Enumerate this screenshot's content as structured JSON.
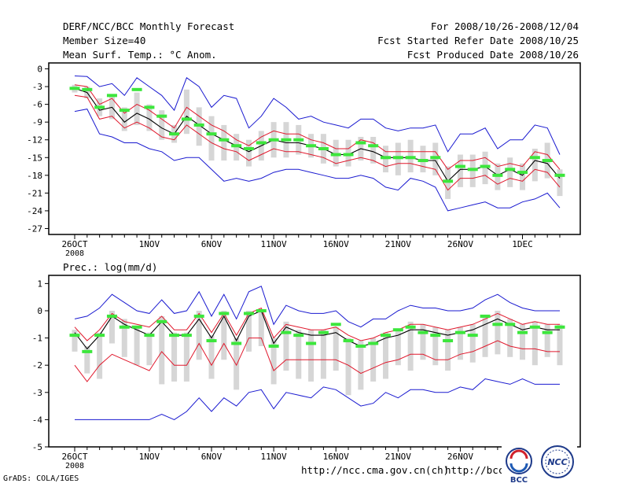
{
  "header": {
    "title": "DERF/NCC/BCC Monthly Forecast",
    "member": "Member Size=40",
    "variable": "Mean Surf. Temp.: °C Anom.",
    "period": "For 2008/10/26-2008/12/04",
    "started": "Fcst Started Refer Date 2008/10/25",
    "produced": "Fcst Produced Date 2008/10/26"
  },
  "footer": {
    "credit": "GrADS: COLA/IGES",
    "url1": "http://ncc.cma.gov.cn(ch)",
    "url2": "http://bcc.c",
    "logo1_text": "BCC",
    "logo2_text": "NCC"
  },
  "colors": {
    "mean": "#000000",
    "spread": "#e0182c",
    "envelope": "#1a1ad0",
    "box": "#d6d6d6",
    "median": "#3ce63c"
  },
  "chart_data": [
    {
      "type": "line",
      "name": "temperature",
      "title": "Mean Surf. Temp.: °C Anom.",
      "xlabel": "",
      "ylabel": "",
      "x": [
        1,
        2,
        3,
        4,
        5,
        6,
        7,
        8,
        9,
        10,
        11,
        12,
        13,
        14,
        15,
        16,
        17,
        18,
        19,
        20,
        21,
        22,
        23,
        24,
        25,
        26,
        27,
        28,
        29,
        30,
        31,
        32,
        33,
        34,
        35,
        36,
        37,
        38,
        39,
        40
      ],
      "xticks": [
        {
          "day": 1,
          "label": "26OCT",
          "sub": "2008"
        },
        {
          "day": 7,
          "label": "1NOV"
        },
        {
          "day": 12,
          "label": "6NOV"
        },
        {
          "day": 17,
          "label": "11NOV"
        },
        {
          "day": 22,
          "label": "16NOV"
        },
        {
          "day": 27,
          "label": "21NOV"
        },
        {
          "day": 32,
          "label": "26NOV"
        },
        {
          "day": 37,
          "label": "1DEC"
        }
      ],
      "ylim": [
        -28,
        1
      ],
      "yticks": [
        0,
        -3,
        -6,
        -9,
        -12,
        -15,
        -18,
        -21,
        -24,
        -27
      ],
      "series": [
        {
          "name": "mean",
          "color": "#000000",
          "values": [
            -3.3,
            -4.0,
            -7.0,
            -6.5,
            -9.0,
            -7.5,
            -8.5,
            -10.0,
            -11.0,
            -8.0,
            -9.5,
            -11.0,
            -12.0,
            -13.0,
            -14.0,
            -13.0,
            -12.0,
            -12.5,
            -12.5,
            -13.0,
            -13.5,
            -14.5,
            -14.5,
            -13.5,
            -14.0,
            -15.0,
            -15.0,
            -15.0,
            -15.5,
            -15.5,
            -19.0,
            -17.0,
            -17.0,
            -16.5,
            -18.0,
            -17.0,
            -18.0,
            -15.5,
            -16.0,
            -18.5
          ]
        },
        {
          "name": "upper",
          "color": "#e0182c",
          "values": [
            -2.7,
            -3.0,
            -6.0,
            -5.0,
            -7.5,
            -6.0,
            -7.0,
            -8.5,
            -10.0,
            -6.5,
            -8.0,
            -9.5,
            -10.5,
            -12.0,
            -13.0,
            -11.5,
            -10.5,
            -11.0,
            -11.0,
            -12.0,
            -12.5,
            -13.5,
            -13.5,
            -12.0,
            -12.5,
            -14.0,
            -14.0,
            -14.0,
            -14.0,
            -14.0,
            -17.0,
            -15.5,
            -15.5,
            -15.0,
            -16.5,
            -16.0,
            -16.5,
            -14.0,
            -14.5,
            -17.0
          ]
        },
        {
          "name": "lower",
          "color": "#e0182c",
          "values": [
            -4.5,
            -4.8,
            -8.5,
            -8.0,
            -10.0,
            -9.0,
            -10.0,
            -11.5,
            -12.0,
            -9.5,
            -11.0,
            -12.5,
            -13.5,
            -14.0,
            -15.5,
            -14.5,
            -13.5,
            -14.0,
            -14.0,
            -14.5,
            -15.0,
            -16.0,
            -15.5,
            -15.0,
            -15.5,
            -16.5,
            -16.0,
            -16.0,
            -16.5,
            -17.0,
            -20.5,
            -18.5,
            -18.5,
            -18.0,
            -19.5,
            -18.5,
            -19.0,
            -17.0,
            -17.5,
            -20.0
          ]
        },
        {
          "name": "max",
          "color": "#1a1ad0",
          "values": [
            -1.2,
            -1.3,
            -3.0,
            -2.5,
            -4.5,
            -1.5,
            -3.0,
            -4.5,
            -7.0,
            -1.5,
            -3.0,
            -6.5,
            -4.5,
            -5.0,
            -10.0,
            -8.0,
            -5.0,
            -6.5,
            -8.5,
            -8.0,
            -9.0,
            -9.5,
            -10.0,
            -8.5,
            -8.5,
            -10.0,
            -10.5,
            -10.0,
            -10.0,
            -9.5,
            -14.0,
            -11.0,
            -11.0,
            -10.0,
            -13.5,
            -12.0,
            -12.0,
            -9.5,
            -10.0,
            -14.5
          ]
        },
        {
          "name": "min",
          "color": "#1a1ad0",
          "values": [
            -7.2,
            -6.8,
            -11.0,
            -11.5,
            -12.5,
            -12.5,
            -13.5,
            -14.0,
            -15.5,
            -15.0,
            -15.0,
            -17.0,
            -19.0,
            -18.5,
            -19.0,
            -18.5,
            -17.5,
            -17.0,
            -17.0,
            -17.5,
            -18.0,
            -18.5,
            -18.5,
            -18.0,
            -18.5,
            -20.0,
            -20.5,
            -18.5,
            -19.0,
            -20.0,
            -24.0,
            -23.5,
            -23.0,
            -22.5,
            -23.5,
            -23.5,
            -22.5,
            -22.0,
            -21.0,
            -23.5
          ]
        }
      ],
      "box_top": [
        -2.7,
        -3.0,
        -5.0,
        -4.5,
        -6.5,
        -4.0,
        -6.0,
        -7.0,
        -9.5,
        -3.5,
        -6.5,
        -8.0,
        -9.5,
        -11.0,
        -12.0,
        -10.5,
        -9.0,
        -9.0,
        -9.5,
        -11.0,
        -11.0,
        -12.0,
        -12.0,
        -11.5,
        -11.5,
        -13.0,
        -12.5,
        -12.0,
        -13.0,
        -12.5,
        -16.5,
        -14.5,
        -14.5,
        -14.0,
        -16.0,
        -15.0,
        -16.0,
        -13.5,
        -12.5,
        -17.0
      ],
      "box_bottom": [
        -4.0,
        -5.0,
        -8.0,
        -8.5,
        -10.5,
        -9.5,
        -10.5,
        -12.0,
        -12.5,
        -11.0,
        -13.0,
        -15.5,
        -15.5,
        -15.5,
        -16.5,
        -15.5,
        -15.0,
        -15.0,
        -14.5,
        -15.0,
        -16.0,
        -16.5,
        -16.5,
        -15.5,
        -16.0,
        -17.5,
        -18.0,
        -17.5,
        -17.5,
        -18.0,
        -22.0,
        -20.0,
        -20.0,
        -19.5,
        -20.5,
        -20.0,
        -20.5,
        -19.0,
        -18.5,
        -21.5
      ],
      "median": [
        -3.3,
        -3.5,
        -6.5,
        -4.5,
        -7.0,
        -3.5,
        -6.5,
        -8.0,
        -11.0,
        -8.5,
        -9.5,
        -11.0,
        -12.0,
        -13.0,
        -13.5,
        -12.5,
        -12.0,
        -12.0,
        -12.0,
        -13.0,
        -13.5,
        -14.5,
        -14.5,
        -12.5,
        -13.0,
        -15.0,
        -15.0,
        -15.0,
        -15.5,
        -15.0,
        -19.0,
        -16.5,
        -17.0,
        -16.5,
        -18.0,
        -17.0,
        -17.5,
        -15.0,
        -15.5,
        -18.0
      ]
    },
    {
      "type": "line",
      "name": "precipitation",
      "title": "Prec.: log(mm/d)",
      "xlabel": "",
      "ylabel": "",
      "x": [
        1,
        2,
        3,
        4,
        5,
        6,
        7,
        8,
        9,
        10,
        11,
        12,
        13,
        14,
        15,
        16,
        17,
        18,
        19,
        20,
        21,
        22,
        23,
        24,
        25,
        26,
        27,
        28,
        29,
        30,
        31,
        32,
        33,
        34,
        35,
        36,
        37,
        38,
        39,
        40
      ],
      "xticks": [
        {
          "day": 1,
          "label": "26OCT",
          "sub": "2008"
        },
        {
          "day": 7,
          "label": "1NOV"
        },
        {
          "day": 12,
          "label": "6NOV"
        },
        {
          "day": 17,
          "label": "11NOV"
        },
        {
          "day": 22,
          "label": "16NOV"
        },
        {
          "day": 27,
          "label": "21NOV"
        },
        {
          "day": 32,
          "label": "26NOV"
        }
      ],
      "ylim": [
        -5,
        1.3
      ],
      "yticks": [
        1,
        0,
        -1,
        -2,
        -3,
        -4,
        -5
      ],
      "series": [
        {
          "name": "mean",
          "color": "#000000",
          "values": [
            -0.8,
            -1.4,
            -0.9,
            -0.2,
            -0.5,
            -0.7,
            -0.9,
            -0.4,
            -0.9,
            -0.9,
            -0.3,
            -1.0,
            -0.2,
            -1.1,
            -0.2,
            0.0,
            -1.2,
            -0.6,
            -0.8,
            -0.9,
            -0.9,
            -0.8,
            -1.1,
            -1.3,
            -1.2,
            -1.0,
            -0.9,
            -0.7,
            -0.7,
            -0.8,
            -0.9,
            -0.8,
            -0.7,
            -0.5,
            -0.3,
            -0.5,
            -0.7,
            -0.6,
            -0.7,
            -0.7
          ]
        },
        {
          "name": "upper",
          "color": "#e0182c",
          "values": [
            -0.6,
            -1.1,
            -0.7,
            -0.1,
            -0.4,
            -0.5,
            -0.6,
            -0.2,
            -0.7,
            -0.7,
            -0.1,
            -0.8,
            -0.1,
            -0.9,
            -0.1,
            0.1,
            -1.0,
            -0.5,
            -0.6,
            -0.7,
            -0.7,
            -0.6,
            -0.9,
            -1.1,
            -1.0,
            -0.8,
            -0.7,
            -0.5,
            -0.5,
            -0.6,
            -0.7,
            -0.6,
            -0.5,
            -0.3,
            -0.1,
            -0.3,
            -0.5,
            -0.4,
            -0.5,
            -0.5
          ]
        },
        {
          "name": "lower",
          "color": "#e0182c",
          "values": [
            -2.0,
            -2.6,
            -2.0,
            -1.6,
            -1.8,
            -2.0,
            -2.2,
            -1.5,
            -2.0,
            -2.0,
            -1.2,
            -2.0,
            -1.2,
            -2.0,
            -1.0,
            -1.0,
            -2.2,
            -1.8,
            -1.8,
            -1.8,
            -1.8,
            -1.8,
            -2.0,
            -2.3,
            -2.1,
            -1.9,
            -1.8,
            -1.6,
            -1.6,
            -1.8,
            -1.8,
            -1.6,
            -1.5,
            -1.3,
            -1.1,
            -1.3,
            -1.4,
            -1.4,
            -1.5,
            -1.5
          ]
        },
        {
          "name": "max",
          "color": "#1a1ad0",
          "values": [
            -0.3,
            -0.2,
            0.1,
            0.6,
            0.3,
            0.0,
            -0.1,
            0.4,
            -0.1,
            0.0,
            0.7,
            -0.2,
            0.6,
            -0.3,
            0.7,
            0.9,
            -0.5,
            0.2,
            0.0,
            -0.1,
            -0.1,
            0.0,
            -0.4,
            -0.6,
            -0.3,
            -0.3,
            0.0,
            0.2,
            0.1,
            0.1,
            0.0,
            0.0,
            0.1,
            0.4,
            0.6,
            0.3,
            0.1,
            0.0,
            0.0,
            0.0
          ]
        },
        {
          "name": "min",
          "color": "#1a1ad0",
          "values": [
            -4.0,
            -4.0,
            -4.0,
            -4.0,
            -4.0,
            -4.0,
            -4.0,
            -3.8,
            -4.0,
            -3.7,
            -3.2,
            -3.7,
            -3.2,
            -3.5,
            -3.0,
            -2.9,
            -3.6,
            -3.0,
            -3.1,
            -3.2,
            -2.8,
            -2.9,
            -3.2,
            -3.5,
            -3.4,
            -3.0,
            -3.2,
            -2.9,
            -2.9,
            -3.0,
            -3.0,
            -2.8,
            -2.9,
            -2.5,
            -2.6,
            -2.7,
            -2.5,
            -2.7,
            -2.7,
            -2.7
          ]
        }
      ],
      "box_top": [
        -0.7,
        -1.3,
        -0.8,
        0.0,
        -0.3,
        -0.6,
        -0.8,
        -0.2,
        -0.8,
        -0.8,
        0.0,
        -0.9,
        0.0,
        -1.0,
        0.0,
        0.0,
        -1.0,
        -0.4,
        -0.7,
        -0.7,
        -0.7,
        -0.6,
        -1.0,
        -1.1,
        -1.0,
        -0.8,
        -0.7,
        -0.4,
        -0.5,
        -0.6,
        -0.7,
        -0.6,
        -0.5,
        -0.2,
        0.0,
        -0.3,
        -0.5,
        -0.4,
        -0.5,
        -0.5
      ],
      "box_bottom": [
        -1.5,
        -2.3,
        -2.5,
        -1.2,
        -1.7,
        -2.0,
        -2.0,
        -2.7,
        -2.6,
        -2.6,
        -1.8,
        -2.5,
        -1.8,
        -2.9,
        -1.5,
        -1.3,
        -2.7,
        -2.2,
        -2.5,
        -2.6,
        -2.5,
        -2.2,
        -3.1,
        -2.9,
        -2.6,
        -2.5,
        -2.0,
        -2.2,
        -1.8,
        -2.0,
        -2.2,
        -1.8,
        -1.9,
        -1.7,
        -1.6,
        -1.7,
        -1.8,
        -2.0,
        -1.7,
        -2.0
      ],
      "median": [
        -0.9,
        -1.5,
        -0.9,
        -0.2,
        -0.6,
        -0.6,
        -0.9,
        -0.4,
        -0.9,
        -0.9,
        -0.2,
        -1.1,
        -0.1,
        -1.2,
        -0.1,
        0.0,
        -1.3,
        -0.8,
        -0.9,
        -1.2,
        -0.8,
        -0.5,
        -1.1,
        -1.3,
        -1.2,
        -0.9,
        -0.7,
        -0.6,
        -0.8,
        -0.9,
        -1.1,
        -0.8,
        -0.9,
        -0.2,
        -0.5,
        -0.5,
        -0.8,
        -0.6,
        -0.8,
        -0.6
      ]
    }
  ]
}
